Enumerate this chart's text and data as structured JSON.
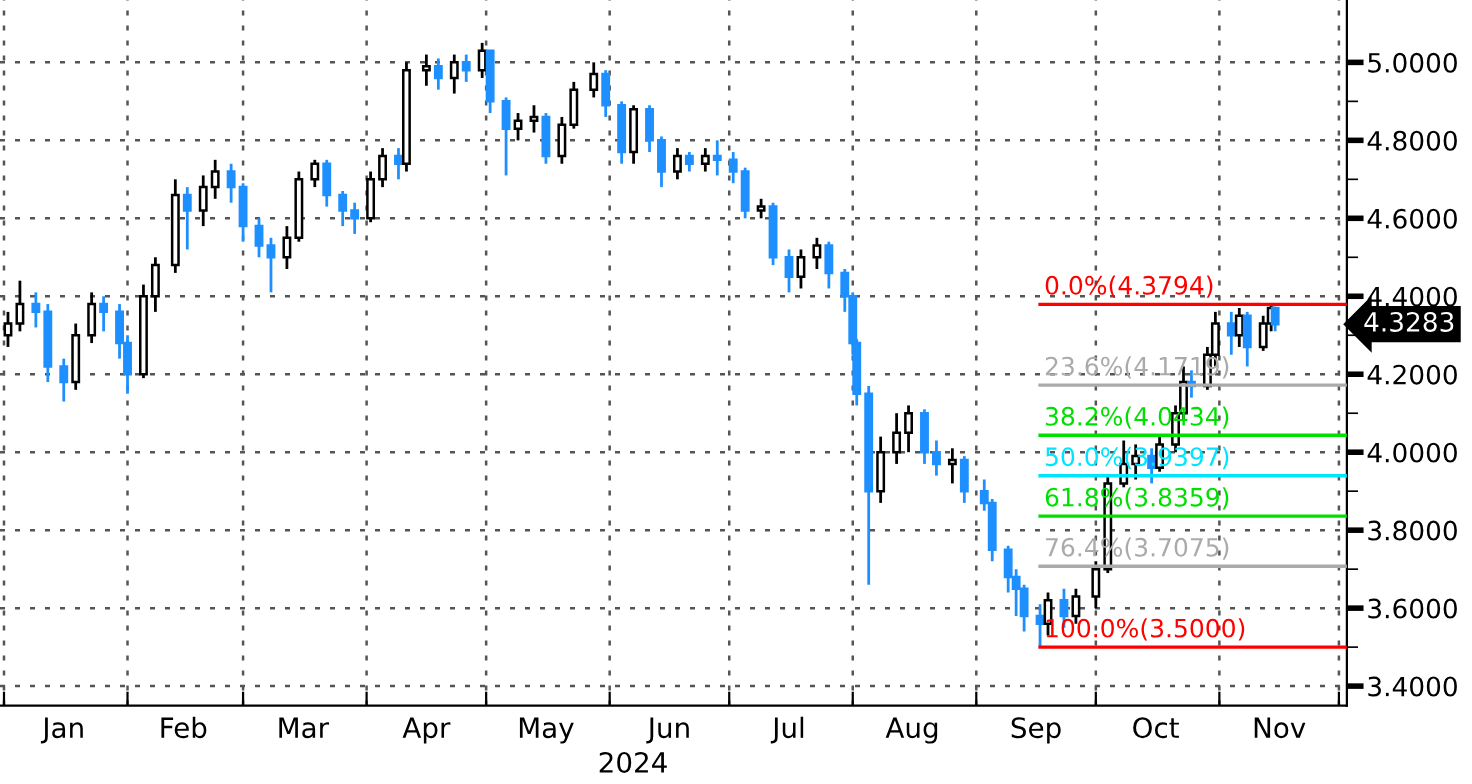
{
  "chart_data": {
    "type": "candlestick",
    "xlabel": "2024",
    "x": [
      "2024-01-02",
      "2024-01-05",
      "2024-01-09",
      "2024-01-12",
      "2024-01-16",
      "2024-01-19",
      "2024-01-23",
      "2024-01-26",
      "2024-01-30",
      "2024-02-01",
      "2024-02-05",
      "2024-02-08",
      "2024-02-13",
      "2024-02-16",
      "2024-02-20",
      "2024-02-23",
      "2024-02-27",
      "2024-03-01",
      "2024-03-05",
      "2024-03-08",
      "2024-03-12",
      "2024-03-15",
      "2024-03-19",
      "2024-03-22",
      "2024-03-26",
      "2024-03-29",
      "2024-04-02",
      "2024-04-05",
      "2024-04-09",
      "2024-04-11",
      "2024-04-16",
      "2024-04-19",
      "2024-04-23",
      "2024-04-26",
      "2024-04-30",
      "2024-05-02",
      "2024-05-06",
      "2024-05-09",
      "2024-05-13",
      "2024-05-16",
      "2024-05-20",
      "2024-05-23",
      "2024-05-28",
      "2024-05-31",
      "2024-06-04",
      "2024-06-07",
      "2024-06-11",
      "2024-06-14",
      "2024-06-18",
      "2024-06-21",
      "2024-06-25",
      "2024-06-28",
      "2024-07-02",
      "2024-07-05",
      "2024-07-09",
      "2024-07-12",
      "2024-07-16",
      "2024-07-19",
      "2024-07-23",
      "2024-07-26",
      "2024-07-30",
      "2024-08-01",
      "2024-08-02",
      "2024-08-05",
      "2024-08-08",
      "2024-08-12",
      "2024-08-15",
      "2024-08-19",
      "2024-08-22",
      "2024-08-26",
      "2024-08-29",
      "2024-09-03",
      "2024-09-05",
      "2024-09-09",
      "2024-09-11",
      "2024-09-13",
      "2024-09-17",
      "2024-09-19",
      "2024-09-23",
      "2024-09-26",
      "2024-10-01",
      "2024-10-04",
      "2024-10-08",
      "2024-10-11",
      "2024-10-15",
      "2024-10-17",
      "2024-10-21",
      "2024-10-23",
      "2024-10-25",
      "2024-10-29",
      "2024-10-31",
      "2024-11-04",
      "2024-11-06",
      "2024-11-08",
      "2024-11-12",
      "2024-11-14",
      "2024-11-15"
    ],
    "ohlc": [
      [
        4.3,
        4.36,
        4.27,
        4.33
      ],
      [
        4.33,
        4.44,
        4.31,
        4.38
      ],
      [
        4.38,
        4.41,
        4.32,
        4.36
      ],
      [
        4.36,
        4.38,
        4.18,
        4.22
      ],
      [
        4.22,
        4.24,
        4.13,
        4.18
      ],
      [
        4.18,
        4.33,
        4.16,
        4.3
      ],
      [
        4.3,
        4.41,
        4.28,
        4.38
      ],
      [
        4.38,
        4.4,
        4.31,
        4.36
      ],
      [
        4.36,
        4.38,
        4.24,
        4.28
      ],
      [
        4.28,
        4.3,
        4.15,
        4.2
      ],
      [
        4.2,
        4.43,
        4.19,
        4.4
      ],
      [
        4.4,
        4.5,
        4.36,
        4.48
      ],
      [
        4.48,
        4.7,
        4.46,
        4.66
      ],
      [
        4.66,
        4.68,
        4.52,
        4.62
      ],
      [
        4.62,
        4.71,
        4.58,
        4.68
      ],
      [
        4.68,
        4.75,
        4.65,
        4.72
      ],
      [
        4.72,
        4.74,
        4.64,
        4.68
      ],
      [
        4.68,
        4.69,
        4.54,
        4.58
      ],
      [
        4.58,
        4.6,
        4.5,
        4.53
      ],
      [
        4.53,
        4.55,
        4.41,
        4.5
      ],
      [
        4.5,
        4.58,
        4.47,
        4.55
      ],
      [
        4.55,
        4.72,
        4.54,
        4.7
      ],
      [
        4.7,
        4.75,
        4.68,
        4.74
      ],
      [
        4.74,
        4.75,
        4.63,
        4.66
      ],
      [
        4.66,
        4.67,
        4.58,
        4.62
      ],
      [
        4.62,
        4.64,
        4.56,
        4.6
      ],
      [
        4.6,
        4.72,
        4.59,
        4.7
      ],
      [
        4.7,
        4.78,
        4.68,
        4.76
      ],
      [
        4.76,
        4.78,
        4.7,
        4.74
      ],
      [
        4.74,
        5.0,
        4.72,
        4.98
      ],
      [
        4.98,
        5.02,
        4.94,
        4.99
      ],
      [
        4.99,
        5.01,
        4.93,
        4.96
      ],
      [
        4.96,
        5.02,
        4.92,
        5.0
      ],
      [
        5.0,
        5.02,
        4.95,
        4.98
      ],
      [
        4.98,
        5.05,
        4.96,
        5.03
      ],
      [
        5.03,
        5.03,
        4.87,
        4.9
      ],
      [
        4.9,
        4.91,
        4.71,
        4.83
      ],
      [
        4.83,
        4.87,
        4.8,
        4.85
      ],
      [
        4.85,
        4.89,
        4.82,
        4.86
      ],
      [
        4.86,
        4.87,
        4.74,
        4.76
      ],
      [
        4.76,
        4.86,
        4.74,
        4.84
      ],
      [
        4.84,
        4.95,
        4.83,
        4.93
      ],
      [
        4.93,
        5.0,
        4.91,
        4.97
      ],
      [
        4.97,
        4.98,
        4.86,
        4.89
      ],
      [
        4.89,
        4.9,
        4.74,
        4.77
      ],
      [
        4.77,
        4.89,
        4.74,
        4.88
      ],
      [
        4.88,
        4.89,
        4.77,
        4.8
      ],
      [
        4.8,
        4.81,
        4.68,
        4.72
      ],
      [
        4.72,
        4.78,
        4.7,
        4.76
      ],
      [
        4.76,
        4.77,
        4.72,
        4.74
      ],
      [
        4.74,
        4.78,
        4.72,
        4.76
      ],
      [
        4.76,
        4.8,
        4.71,
        4.75
      ],
      [
        4.75,
        4.77,
        4.69,
        4.72
      ],
      [
        4.72,
        4.73,
        4.6,
        4.62
      ],
      [
        4.62,
        4.65,
        4.6,
        4.63
      ],
      [
        4.63,
        4.64,
        4.48,
        4.5
      ],
      [
        4.5,
        4.52,
        4.41,
        4.45
      ],
      [
        4.45,
        4.52,
        4.42,
        4.5
      ],
      [
        4.5,
        4.55,
        4.47,
        4.53
      ],
      [
        4.53,
        4.54,
        4.42,
        4.46
      ],
      [
        4.46,
        4.47,
        4.36,
        4.4
      ],
      [
        4.4,
        4.41,
        4.25,
        4.28
      ],
      [
        4.28,
        4.29,
        4.12,
        4.15
      ],
      [
        4.15,
        4.17,
        3.66,
        3.9
      ],
      [
        3.9,
        4.04,
        3.87,
        4.0
      ],
      [
        4.0,
        4.1,
        3.97,
        4.05
      ],
      [
        4.05,
        4.12,
        4.0,
        4.1
      ],
      [
        4.1,
        4.11,
        3.97,
        4.0
      ],
      [
        4.0,
        4.03,
        3.94,
        3.97
      ],
      [
        3.97,
        4.01,
        3.92,
        3.98
      ],
      [
        3.98,
        3.99,
        3.87,
        3.9
      ],
      [
        3.9,
        3.93,
        3.85,
        3.87
      ],
      [
        3.87,
        3.88,
        3.72,
        3.75
      ],
      [
        3.75,
        3.76,
        3.64,
        3.68
      ],
      [
        3.68,
        3.7,
        3.58,
        3.65
      ],
      [
        3.65,
        3.66,
        3.54,
        3.58
      ],
      [
        3.58,
        3.61,
        3.5,
        3.56
      ],
      [
        3.56,
        3.64,
        3.53,
        3.62
      ],
      [
        3.62,
        3.65,
        3.55,
        3.58
      ],
      [
        3.58,
        3.65,
        3.56,
        3.63
      ],
      [
        3.63,
        3.72,
        3.6,
        3.7
      ],
      [
        3.7,
        3.94,
        3.69,
        3.92
      ],
      [
        3.92,
        4.03,
        3.91,
        3.97
      ],
      [
        3.97,
        4.02,
        3.93,
        3.99
      ],
      [
        3.99,
        4.01,
        3.92,
        3.96
      ],
      [
        3.96,
        4.04,
        3.95,
        4.02
      ],
      [
        4.02,
        4.12,
        4.0,
        4.1
      ],
      [
        4.1,
        4.22,
        4.08,
        4.18
      ],
      [
        4.18,
        4.21,
        4.14,
        4.17
      ],
      [
        4.17,
        4.27,
        4.16,
        4.25
      ],
      [
        4.25,
        4.36,
        4.22,
        4.33
      ],
      [
        4.33,
        4.36,
        4.25,
        4.3
      ],
      [
        4.3,
        4.37,
        4.27,
        4.35
      ],
      [
        4.35,
        4.36,
        4.22,
        4.27
      ],
      [
        4.27,
        4.35,
        4.26,
        4.33
      ],
      [
        4.33,
        4.38,
        4.31,
        4.37
      ],
      [
        4.37,
        4.37,
        4.31,
        4.3283
      ]
    ],
    "xlim": [
      "2023-12-31",
      "2024-12-03"
    ],
    "xticks": [
      {
        "value": "2024-01-01",
        "label": null
      },
      {
        "value": "2024-01-16",
        "label": "Jan"
      },
      {
        "value": "2024-02-01",
        "label": null
      },
      {
        "value": "2024-02-15",
        "label": "Feb"
      },
      {
        "value": "2024-03-01",
        "label": null
      },
      {
        "value": "2024-03-16",
        "label": "Mar"
      },
      {
        "value": "2024-04-01",
        "label": null
      },
      {
        "value": "2024-04-16",
        "label": "Apr"
      },
      {
        "value": "2024-05-01",
        "label": null
      },
      {
        "value": "2024-05-16",
        "label": "May"
      },
      {
        "value": "2024-06-01",
        "label": null
      },
      {
        "value": "2024-06-16",
        "label": "Jun"
      },
      {
        "value": "2024-07-01",
        "label": null
      },
      {
        "value": "2024-07-16",
        "label": "Jul"
      },
      {
        "value": "2024-08-01",
        "label": null
      },
      {
        "value": "2024-08-16",
        "label": "Aug"
      },
      {
        "value": "2024-09-01",
        "label": null
      },
      {
        "value": "2024-09-16",
        "label": "Sep"
      },
      {
        "value": "2024-10-01",
        "label": null
      },
      {
        "value": "2024-10-16",
        "label": "Oct"
      },
      {
        "value": "2024-11-01",
        "label": null
      },
      {
        "value": "2024-11-16",
        "label": "Nov"
      },
      {
        "value": "2024-12-01",
        "label": null
      }
    ],
    "ylim": [
      3.35,
      5.16
    ],
    "yticks": [
      {
        "value": 3.4,
        "label": "3.4000"
      },
      {
        "value": 3.6,
        "label": "3.6000"
      },
      {
        "value": 3.8,
        "label": "3.8000"
      },
      {
        "value": 4.0,
        "label": "4.0000"
      },
      {
        "value": 4.2,
        "label": "4.2000"
      },
      {
        "value": 4.4,
        "label": "4.4000"
      },
      {
        "value": 4.6,
        "label": "4.6000"
      },
      {
        "value": 4.8,
        "label": "4.8000"
      },
      {
        "value": 5.0,
        "label": "5.0000"
      }
    ],
    "grid": true,
    "ref_lines": [
      {
        "axis": "y",
        "value": 4.3794,
        "label": "0.0%(4.3794)",
        "color": "#ff0000"
      },
      {
        "axis": "y",
        "value": 4.1719,
        "label": "23.6%(4.1719)",
        "color": "#aaaaaa"
      },
      {
        "axis": "y",
        "value": 4.0434,
        "label": "38.2%(4.0434)",
        "color": "#00e000"
      },
      {
        "axis": "y",
        "value": 3.9397,
        "label": "50.0%(3.9397)",
        "color": "#00e5ff"
      },
      {
        "axis": "y",
        "value": 3.8359,
        "label": "61.8%(3.8359)",
        "color": "#00e000"
      },
      {
        "axis": "y",
        "value": 3.7075,
        "label": "76.4%(3.7075)",
        "color": "#aaaaaa"
      },
      {
        "axis": "y",
        "value": 3.5,
        "label": "100.0%(3.5000)",
        "color": "#ff0000"
      }
    ],
    "annotations": [
      "4.3283"
    ]
  }
}
